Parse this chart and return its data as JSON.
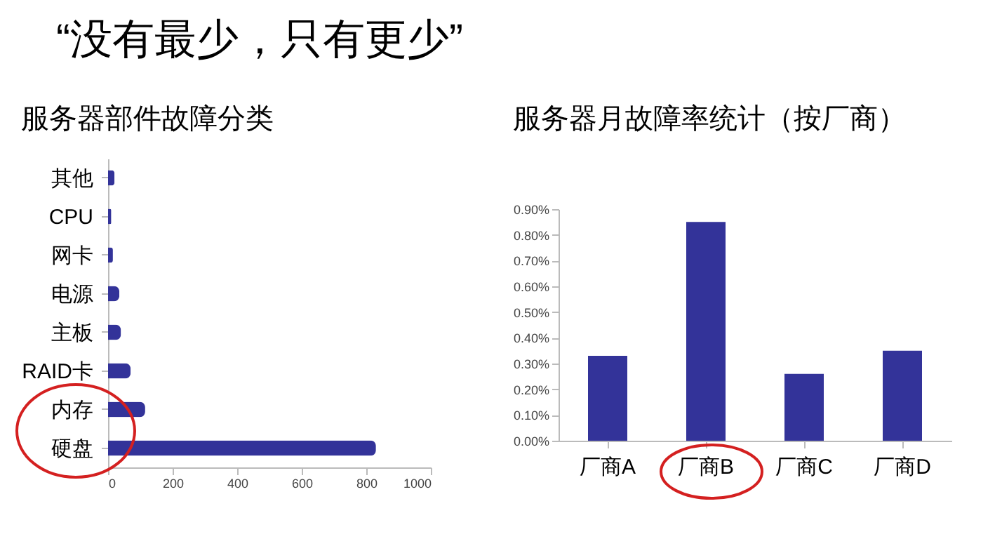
{
  "chart_data": [
    {
      "type": "bar",
      "title": "“没有最少，只有更少”",
      "subtitle": "服务器部件故障分类",
      "orientation": "horizontal",
      "categories": [
        "其他",
        "CPU",
        "网卡",
        "电源",
        "主板",
        "RAID卡",
        "内存",
        "硬盘"
      ],
      "values": [
        20,
        10,
        15,
        35,
        40,
        70,
        115,
        830
      ],
      "color": "#333399",
      "xlim": [
        0,
        1000
      ],
      "xticks": [
        0,
        200,
        400,
        600,
        800,
        1000
      ],
      "grid": false
    },
    {
      "type": "bar",
      "title": "服务器月故障率统计（按厂商）",
      "categories": [
        "厂商A",
        "厂商B",
        "厂商C",
        "厂商D"
      ],
      "values": [
        0.33,
        0.85,
        0.26,
        0.35
      ],
      "color": "#333399",
      "ylim": [
        0,
        0.9
      ],
      "yticks": [
        {
          "value": 0,
          "label": "0.00%"
        },
        {
          "value": 0.1,
          "label": "0.10%"
        },
        {
          "value": 0.2,
          "label": "0.20%"
        },
        {
          "value": 0.3,
          "label": "0.30%"
        },
        {
          "value": 0.4,
          "label": "0.40%"
        },
        {
          "value": 0.5,
          "label": "0.50%"
        },
        {
          "value": 0.6,
          "label": "0.60%"
        },
        {
          "value": 0.7,
          "label": "0.70%"
        },
        {
          "value": 0.8,
          "label": "0.80%"
        },
        {
          "value": 0.9,
          "label": "0.90%"
        }
      ],
      "grid": false
    }
  ]
}
